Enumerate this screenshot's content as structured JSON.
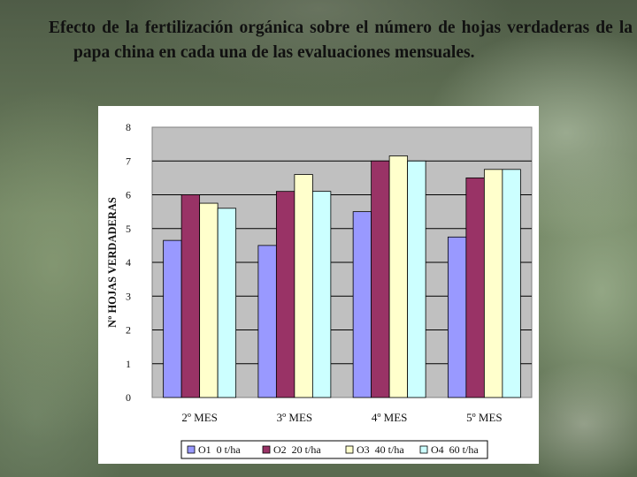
{
  "slide": {
    "title": "Efecto de la fertilización orgánica sobre el número de hojas verdaderas de la papa china en cada una de las evaluaciones mensuales."
  },
  "chart_data": {
    "type": "bar",
    "title": "",
    "xlabel": "",
    "ylabel": "Nº HOJAS VERDADERAS",
    "ylim": [
      0,
      8
    ],
    "yticks": [
      0,
      1,
      2,
      3,
      4,
      5,
      6,
      7,
      8
    ],
    "categories": [
      "2º MES",
      "3º MES",
      "4º MES",
      "5º MES"
    ],
    "series": [
      {
        "name": "O1  0 t/ha",
        "color": "#9999ff",
        "values": [
          4.65,
          4.5,
          5.5,
          4.75
        ]
      },
      {
        "name": "O2  20 t/ha",
        "color": "#993366",
        "values": [
          6.0,
          6.1,
          7.0,
          6.5
        ]
      },
      {
        "name": "O3  40 t/ha",
        "color": "#ffffcc",
        "values": [
          5.75,
          6.6,
          7.15,
          6.75
        ]
      },
      {
        "name": "O4  60 t/ha",
        "color": "#ccffff",
        "values": [
          5.6,
          6.1,
          7.0,
          6.75
        ]
      }
    ],
    "plot_background": "#c0c0c0",
    "grid": true,
    "legend_position": "bottom"
  }
}
